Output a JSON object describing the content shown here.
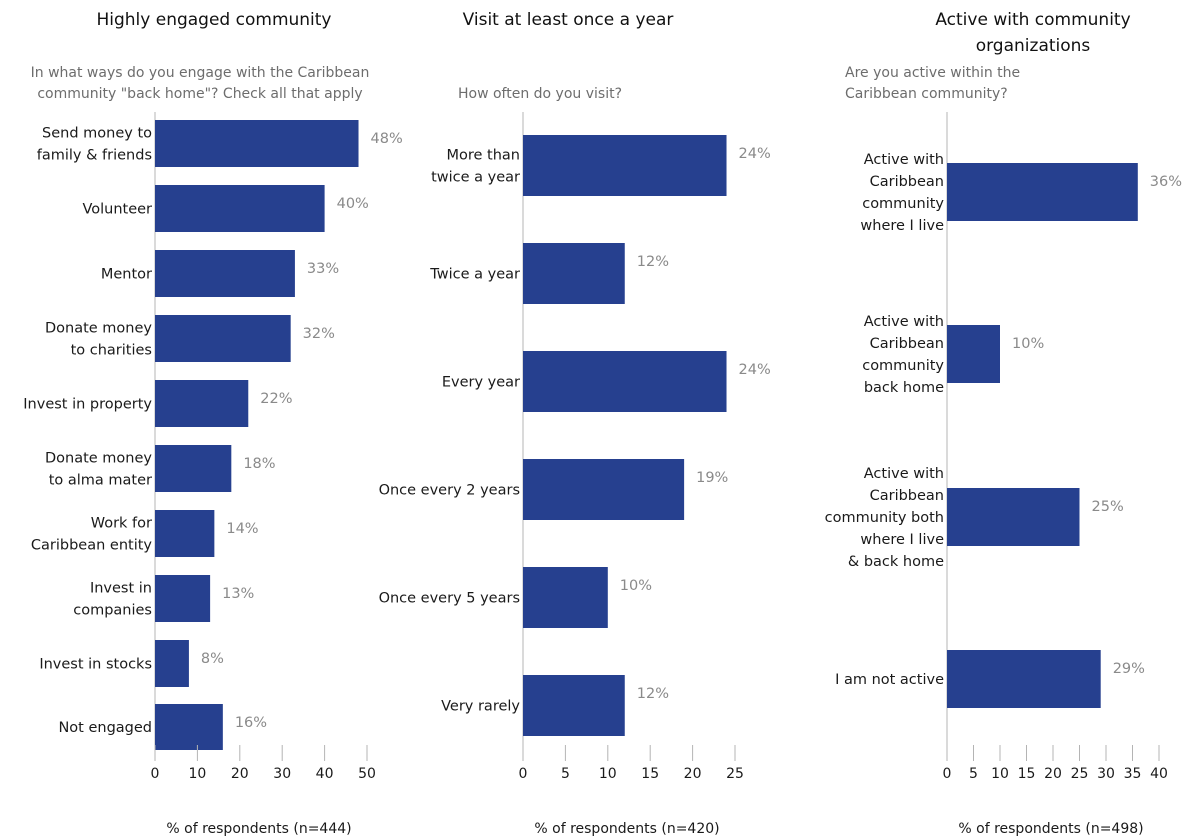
{
  "colors": {
    "bar": "#26408f",
    "axis": "#b4b4b4",
    "value_label": "#8a8a8a"
  },
  "chart_data": [
    {
      "type": "bar",
      "orientation": "horizontal",
      "title": [
        "Highly engaged community"
      ],
      "subtitle": [
        "In what ways do you engage with the Caribbean",
        "community \"back home\"? Check all that apply"
      ],
      "xlabel": "% of respondents (n=444)",
      "xlim": [
        0,
        50
      ],
      "ticks": [
        "0",
        "10",
        "20",
        "30",
        "40",
        "50"
      ],
      "grid": false,
      "categories": [
        [
          "Send money to",
          "family & friends"
        ],
        [
          "Volunteer"
        ],
        [
          "Mentor"
        ],
        [
          "Donate money",
          "to charities"
        ],
        [
          "Invest in property"
        ],
        [
          "Donate money",
          "to alma mater"
        ],
        [
          "Work for",
          "Caribbean entity"
        ],
        [
          "Invest in",
          "companies"
        ],
        [
          "Invest in stocks"
        ],
        [
          "Not engaged"
        ]
      ],
      "values": [
        48,
        40,
        33,
        32,
        22,
        18,
        14,
        13,
        8,
        16
      ],
      "value_labels": [
        "48%",
        "40%",
        "33%",
        "32%",
        "22%",
        "18%",
        "14%",
        "13%",
        "8%",
        "16%"
      ]
    },
    {
      "type": "bar",
      "orientation": "horizontal",
      "title": [
        "Visit at least once a year"
      ],
      "subtitle": [
        "How often do you visit?"
      ],
      "xlabel": "% of respondents (n=420)",
      "xlim": [
        0,
        25
      ],
      "ticks": [
        "0",
        "5",
        "10",
        "15",
        "20",
        "25"
      ],
      "grid": false,
      "categories": [
        [
          "More than",
          "twice a year"
        ],
        [
          "Twice a year"
        ],
        [
          "Every year"
        ],
        [
          "Once every 2 years"
        ],
        [
          "Once every 5 years"
        ],
        [
          "Very rarely"
        ]
      ],
      "values": [
        24,
        12,
        24,
        19,
        10,
        12
      ],
      "value_labels": [
        "24%",
        "12%",
        "24%",
        "19%",
        "10%",
        "12%"
      ]
    },
    {
      "type": "bar",
      "orientation": "horizontal",
      "title": [
        "Active with community",
        "organizations"
      ],
      "subtitle": [
        "Are you active within the",
        "Caribbean community?"
      ],
      "xlabel": "% of respondents (n=498)",
      "xlim": [
        0,
        40
      ],
      "ticks": [
        "0",
        "5",
        "10",
        "15",
        "20",
        "25",
        "30",
        "35",
        "40"
      ],
      "grid": false,
      "categories": [
        [
          "Active with",
          "Caribbean",
          "community",
          "where I live"
        ],
        [
          "Active with",
          "Caribbean",
          "community",
          "back home"
        ],
        [
          "Active with",
          "Caribbean",
          "community both",
          "where I live",
          "& back home"
        ],
        [
          "I am not active"
        ]
      ],
      "values": [
        36,
        10,
        25,
        29
      ],
      "value_labels": [
        "36%",
        "10%",
        "25%",
        "29%"
      ]
    }
  ]
}
